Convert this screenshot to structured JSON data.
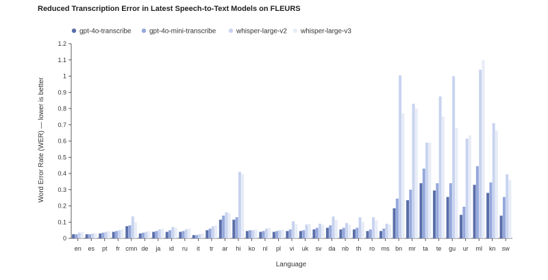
{
  "chart_data": {
    "type": "bar",
    "title": "Reduced Transcription Error in Latest Speech-to-Text Models on FLEURS",
    "xlabel": "Language",
    "ylabel": "Word Error Rate (WER) — lower is better",
    "ylim": [
      0,
      1.2
    ],
    "yticks": [
      "0",
      "0.1",
      "0.2",
      "0.3",
      "0.4",
      "0.5",
      "0.6",
      "0.7",
      "0.8",
      "0.9",
      "1",
      "1.1",
      "1.2"
    ],
    "legend_position": "top",
    "grid": false,
    "categories": [
      "en",
      "es",
      "pt",
      "fr",
      "cmn",
      "de",
      "ja",
      "id",
      "ru",
      "it",
      "tr",
      "ar",
      "hi",
      "ko",
      "nl",
      "pl",
      "vi",
      "uk",
      "sv",
      "da",
      "nb",
      "th",
      "ro",
      "ms",
      "bn",
      "mr",
      "ta",
      "te",
      "gu",
      "ur",
      "ml",
      "kn",
      "sw"
    ],
    "series": [
      {
        "name": "gpt-4o-transcribe",
        "color": "#5a6ea8",
        "values": [
          0.025,
          0.025,
          0.03,
          0.04,
          0.075,
          0.03,
          0.04,
          0.04,
          0.04,
          0.02,
          0.05,
          0.115,
          0.115,
          0.045,
          0.04,
          0.04,
          0.045,
          0.045,
          0.055,
          0.065,
          0.055,
          0.055,
          0.045,
          0.045,
          0.185,
          0.235,
          0.34,
          0.295,
          0.255,
          0.145,
          0.33,
          0.28,
          0.14
        ]
      },
      {
        "name": "gpt-4o-mini-transcribe",
        "color": "#95a8dc",
        "values": [
          0.025,
          0.025,
          0.035,
          0.045,
          0.08,
          0.035,
          0.045,
          0.05,
          0.045,
          0.02,
          0.06,
          0.14,
          0.13,
          0.05,
          0.045,
          0.045,
          0.055,
          0.05,
          0.065,
          0.08,
          0.065,
          0.065,
          0.055,
          0.06,
          0.245,
          0.3,
          0.43,
          0.34,
          0.34,
          0.195,
          0.445,
          0.345,
          0.255
        ]
      },
      {
        "name": "whisper-large-v2",
        "color": "#c8d3ef",
        "values": [
          0.035,
          0.03,
          0.04,
          0.05,
          0.135,
          0.04,
          0.055,
          0.07,
          0.055,
          0.025,
          0.075,
          0.16,
          0.41,
          0.05,
          0.06,
          0.05,
          0.105,
          0.085,
          0.09,
          0.135,
          0.095,
          0.13,
          0.13,
          0.09,
          1.005,
          0.83,
          0.59,
          0.875,
          1.0,
          0.615,
          1.04,
          0.71,
          0.395
        ]
      },
      {
        "name": "whisper-large-v3",
        "color": "#e7ecf7",
        "values": [
          0.04,
          0.03,
          0.045,
          0.055,
          0.1,
          0.045,
          0.06,
          0.065,
          0.06,
          0.03,
          0.08,
          0.155,
          0.395,
          0.055,
          0.065,
          0.055,
          0.09,
          0.09,
          0.085,
          0.115,
          0.085,
          0.1,
          0.11,
          0.085,
          0.77,
          0.8,
          0.59,
          0.75,
          0.68,
          0.635,
          1.1,
          0.665,
          0.36
        ]
      }
    ]
  }
}
